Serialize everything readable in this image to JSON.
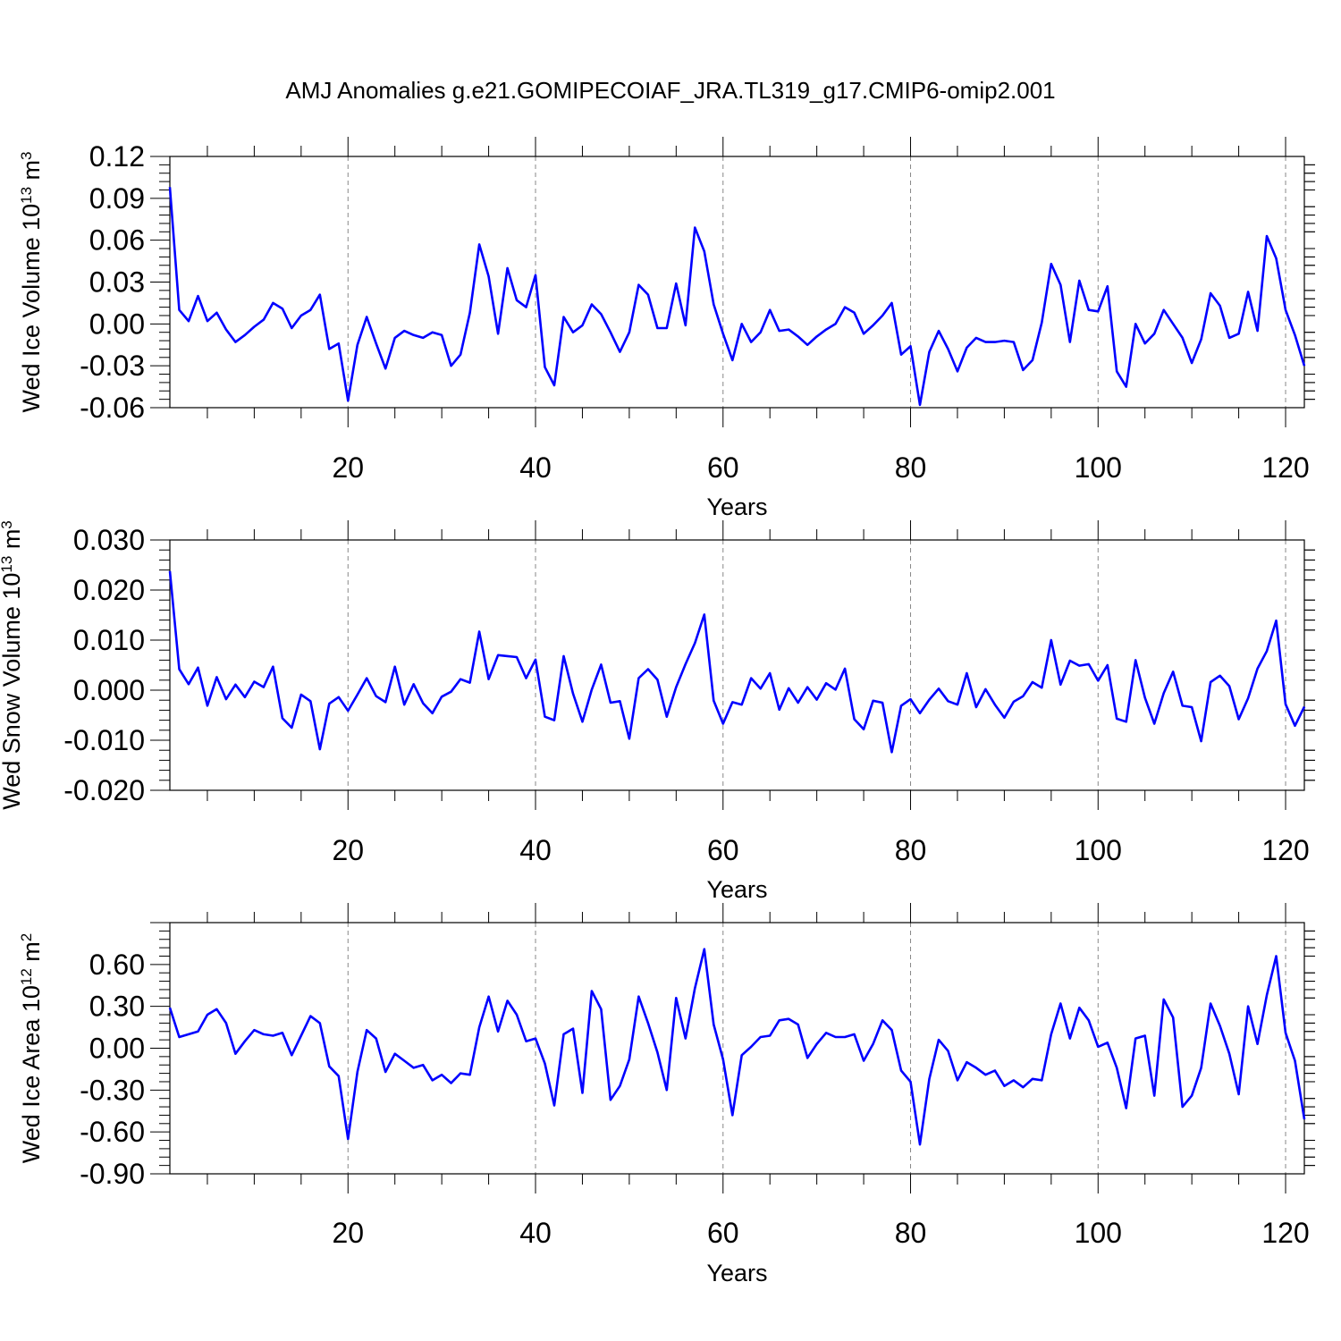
{
  "title": "AMJ Anomalies g.e21.GOMIPECOIAF_JRA.TL319_g17.CMIP6-omip2.001",
  "colors": {
    "line": "#0000ff",
    "axis": "#000000",
    "grid": "#888888"
  },
  "chart_data": [
    {
      "type": "line",
      "xlabel": "Years",
      "ylabel": {
        "name": "Wed Ice Volume 10",
        "exp": "13",
        "unit": " m",
        "unit_exp": "3"
      },
      "xlim": [
        1,
        122
      ],
      "xticks": [
        20,
        40,
        60,
        80,
        100,
        120
      ],
      "xtick_labels": [
        "20",
        "40",
        "60",
        "80",
        "100",
        "120"
      ],
      "ylim": [
        -0.06,
        0.12
      ],
      "yticks": [
        -0.06,
        -0.03,
        0.0,
        0.03,
        0.06,
        0.09,
        0.12
      ],
      "ytick_labels": [
        "-0.06",
        "-0.03",
        "0.00",
        "0.03",
        "0.06",
        "0.09",
        "0.12"
      ],
      "grid": "vertical dashed at major x ticks",
      "x": [
        1,
        2,
        3,
        4,
        5,
        6,
        7,
        8,
        9,
        10,
        11,
        12,
        13,
        14,
        15,
        16,
        17,
        18,
        19,
        20,
        21,
        22,
        23,
        24,
        25,
        26,
        27,
        28,
        29,
        30,
        31,
        32,
        33,
        34,
        35,
        36,
        37,
        38,
        39,
        40,
        41,
        42,
        43,
        44,
        45,
        46,
        47,
        48,
        49,
        50,
        51,
        52,
        53,
        54,
        55,
        56,
        57,
        58,
        59,
        60,
        61,
        62,
        63,
        64,
        65,
        66,
        67,
        68,
        69,
        70,
        71,
        72,
        73,
        74,
        75,
        76,
        77,
        78,
        79,
        80,
        81,
        82,
        83,
        84,
        85,
        86,
        87,
        88,
        89,
        90,
        91,
        92,
        93,
        94,
        95,
        96,
        97,
        98,
        99,
        100,
        101,
        102,
        103,
        104,
        105,
        106,
        107,
        108,
        109,
        110,
        111,
        112,
        113,
        114,
        115,
        116,
        117,
        118,
        119,
        120,
        121,
        122
      ],
      "values": [
        0.098,
        0.01,
        0.002,
        0.02,
        0.002,
        0.008,
        -0.004,
        -0.013,
        -0.008,
        -0.002,
        0.003,
        0.015,
        0.011,
        -0.003,
        0.006,
        0.01,
        0.021,
        -0.018,
        -0.014,
        -0.055,
        -0.015,
        0.005,
        -0.014,
        -0.032,
        -0.01,
        -0.005,
        -0.008,
        -0.01,
        -0.006,
        -0.008,
        -0.03,
        -0.022,
        0.008,
        0.057,
        0.034,
        -0.007,
        0.04,
        0.017,
        0.012,
        0.035,
        -0.031,
        -0.044,
        0.005,
        -0.006,
        -0.001,
        0.014,
        0.007,
        -0.006,
        -0.02,
        -0.006,
        0.028,
        0.021,
        -0.003,
        -0.003,
        0.029,
        -0.001,
        0.069,
        0.052,
        0.014,
        -0.007,
        -0.026,
        0.0,
        -0.013,
        -0.006,
        0.01,
        -0.005,
        -0.004,
        -0.009,
        -0.015,
        -0.009,
        -0.004,
        0.0,
        0.012,
        0.008,
        -0.007,
        -0.001,
        0.006,
        0.015,
        -0.022,
        -0.016,
        -0.058,
        -0.02,
        -0.005,
        -0.018,
        -0.034,
        -0.017,
        -0.01,
        -0.013,
        -0.013,
        -0.012,
        -0.013,
        -0.033,
        -0.026,
        0.001,
        0.043,
        0.028,
        -0.013,
        0.031,
        0.01,
        0.009,
        0.027,
        -0.034,
        -0.045,
        0.0,
        -0.014,
        -0.007,
        0.01,
        0.0,
        -0.01,
        -0.028,
        -0.011,
        0.022,
        0.013,
        -0.01,
        -0.007,
        0.023,
        -0.005,
        0.063,
        0.047,
        0.01,
        -0.008,
        -0.03
      ]
    },
    {
      "type": "line",
      "xlabel": "Years",
      "ylabel": {
        "name": "Wed Snow Volume 10",
        "exp": "13",
        "unit": " m",
        "unit_exp": "3"
      },
      "xlim": [
        1,
        122
      ],
      "xticks": [
        20,
        40,
        60,
        80,
        100,
        120
      ],
      "xtick_labels": [
        "20",
        "40",
        "60",
        "80",
        "100",
        "120"
      ],
      "ylim": [
        -0.02,
        0.03
      ],
      "yticks": [
        -0.02,
        -0.01,
        0.0,
        0.01,
        0.02,
        0.03
      ],
      "ytick_labels": [
        "-0.020",
        "-0.010",
        "0.000",
        "0.010",
        "0.020",
        "0.030"
      ],
      "grid": "vertical dashed at major x ticks",
      "x": [
        1,
        2,
        3,
        4,
        5,
        6,
        7,
        8,
        9,
        10,
        11,
        12,
        13,
        14,
        15,
        16,
        17,
        18,
        19,
        20,
        21,
        22,
        23,
        24,
        25,
        26,
        27,
        28,
        29,
        30,
        31,
        32,
        33,
        34,
        35,
        36,
        37,
        38,
        39,
        40,
        41,
        42,
        43,
        44,
        45,
        46,
        47,
        48,
        49,
        50,
        51,
        52,
        53,
        54,
        55,
        56,
        57,
        58,
        59,
        60,
        61,
        62,
        63,
        64,
        65,
        66,
        67,
        68,
        69,
        70,
        71,
        72,
        73,
        74,
        75,
        76,
        77,
        78,
        79,
        80,
        81,
        82,
        83,
        84,
        85,
        86,
        87,
        88,
        89,
        90,
        91,
        92,
        93,
        94,
        95,
        96,
        97,
        98,
        99,
        100,
        101,
        102,
        103,
        104,
        105,
        106,
        107,
        108,
        109,
        110,
        111,
        112,
        113,
        114,
        115,
        116,
        117,
        118,
        119,
        120,
        121,
        122
      ],
      "values": [
        0.0238,
        0.0042,
        0.0012,
        0.0045,
        -0.0031,
        0.0026,
        -0.0018,
        0.0011,
        -0.0014,
        0.0017,
        0.0006,
        0.0047,
        -0.0056,
        -0.0075,
        -0.0009,
        -0.0022,
        -0.0118,
        -0.0027,
        -0.0014,
        -0.0041,
        -0.0009,
        0.0024,
        -0.0012,
        -0.0024,
        0.0047,
        -0.0029,
        0.0012,
        -0.0026,
        -0.0046,
        -0.0013,
        -0.0003,
        0.0022,
        0.0015,
        0.0117,
        0.0022,
        0.007,
        0.0068,
        0.0066,
        0.0024,
        0.0061,
        -0.0053,
        -0.006,
        0.0068,
        -0.0007,
        -0.0063,
        0.0001,
        0.0051,
        -0.0025,
        -0.0022,
        -0.0097,
        0.0024,
        0.0042,
        0.0021,
        -0.0053,
        0.0006,
        0.0052,
        0.0094,
        0.0151,
        -0.0021,
        -0.0067,
        -0.0024,
        -0.0029,
        0.0024,
        0.0003,
        0.0034,
        -0.0039,
        0.0004,
        -0.0025,
        0.0006,
        -0.0019,
        0.0014,
        0.0001,
        0.0043,
        -0.0058,
        -0.0078,
        -0.0021,
        -0.0025,
        -0.0124,
        -0.0031,
        -0.0018,
        -0.0046,
        -0.0019,
        0.0003,
        -0.0022,
        -0.0029,
        0.0034,
        -0.0034,
        0.0002,
        -0.0029,
        -0.0055,
        -0.0023,
        -0.0012,
        0.0016,
        0.0005,
        0.01,
        0.0011,
        0.0059,
        0.0049,
        0.0052,
        0.0019,
        0.005,
        -0.0057,
        -0.0063,
        0.006,
        -0.0015,
        -0.0067,
        -0.0006,
        0.0037,
        -0.0031,
        -0.0034,
        -0.0102,
        0.0016,
        0.0029,
        0.0008,
        -0.0058,
        -0.0016,
        0.0043,
        0.0078,
        0.0139,
        -0.0028,
        -0.0071,
        -0.0033
      ]
    },
    {
      "type": "line",
      "xlabel": "Years",
      "ylabel": {
        "name": "Wed Ice Area 10",
        "exp": "12",
        "unit": " m",
        "unit_exp": "2"
      },
      "xlim": [
        1,
        122
      ],
      "xticks": [
        20,
        40,
        60,
        80,
        100,
        120
      ],
      "xtick_labels": [
        "20",
        "40",
        "60",
        "80",
        "100",
        "120"
      ],
      "ylim": [
        -0.9,
        0.9
      ],
      "yticks": [
        -0.9,
        -0.6,
        -0.3,
        0.0,
        0.3,
        0.6
      ],
      "ytick_labels": [
        "-0.90",
        "-0.60",
        "-0.30",
        "0.00",
        "0.30",
        "0.60"
      ],
      "grid": "vertical dashed at major x ticks",
      "x": [
        1,
        2,
        3,
        4,
        5,
        6,
        7,
        8,
        9,
        10,
        11,
        12,
        13,
        14,
        15,
        16,
        17,
        18,
        19,
        20,
        21,
        22,
        23,
        24,
        25,
        26,
        27,
        28,
        29,
        30,
        31,
        32,
        33,
        34,
        35,
        36,
        37,
        38,
        39,
        40,
        41,
        42,
        43,
        44,
        45,
        46,
        47,
        48,
        49,
        50,
        51,
        52,
        53,
        54,
        55,
        56,
        57,
        58,
        59,
        60,
        61,
        62,
        63,
        64,
        65,
        66,
        67,
        68,
        69,
        70,
        71,
        72,
        73,
        74,
        75,
        76,
        77,
        78,
        79,
        80,
        81,
        82,
        83,
        84,
        85,
        86,
        87,
        88,
        89,
        90,
        91,
        92,
        93,
        94,
        95,
        96,
        97,
        98,
        99,
        100,
        101,
        102,
        103,
        104,
        105,
        106,
        107,
        108,
        109,
        110,
        111,
        112,
        113,
        114,
        115,
        116,
        117,
        118,
        119,
        120,
        121,
        122
      ],
      "values": [
        0.29,
        0.08,
        0.1,
        0.12,
        0.24,
        0.28,
        0.18,
        -0.04,
        0.05,
        0.13,
        0.1,
        0.09,
        0.11,
        -0.05,
        0.09,
        0.23,
        0.18,
        -0.13,
        -0.2,
        -0.65,
        -0.17,
        0.13,
        0.07,
        -0.17,
        -0.04,
        -0.09,
        -0.14,
        -0.12,
        -0.23,
        -0.19,
        -0.25,
        -0.18,
        -0.19,
        0.15,
        0.37,
        0.12,
        0.34,
        0.24,
        0.05,
        0.07,
        -0.11,
        -0.41,
        0.1,
        0.14,
        -0.32,
        0.41,
        0.28,
        -0.37,
        -0.27,
        -0.08,
        0.37,
        0.18,
        -0.03,
        -0.3,
        0.36,
        0.07,
        0.43,
        0.71,
        0.17,
        -0.08,
        -0.48,
        -0.05,
        0.01,
        0.08,
        0.09,
        0.2,
        0.21,
        0.17,
        -0.07,
        0.03,
        0.11,
        0.08,
        0.08,
        0.1,
        -0.09,
        0.03,
        0.2,
        0.13,
        -0.16,
        -0.24,
        -0.69,
        -0.22,
        0.06,
        -0.02,
        -0.23,
        -0.1,
        -0.14,
        -0.19,
        -0.16,
        -0.27,
        -0.23,
        -0.28,
        -0.22,
        -0.23,
        0.1,
        0.32,
        0.07,
        0.29,
        0.2,
        0.01,
        0.04,
        -0.14,
        -0.43,
        0.07,
        0.09,
        -0.34,
        0.35,
        0.22,
        -0.42,
        -0.34,
        -0.14,
        0.32,
        0.16,
        -0.04,
        -0.33,
        0.3,
        0.03,
        0.38,
        0.66,
        0.11,
        -0.09,
        -0.51
      ]
    }
  ]
}
